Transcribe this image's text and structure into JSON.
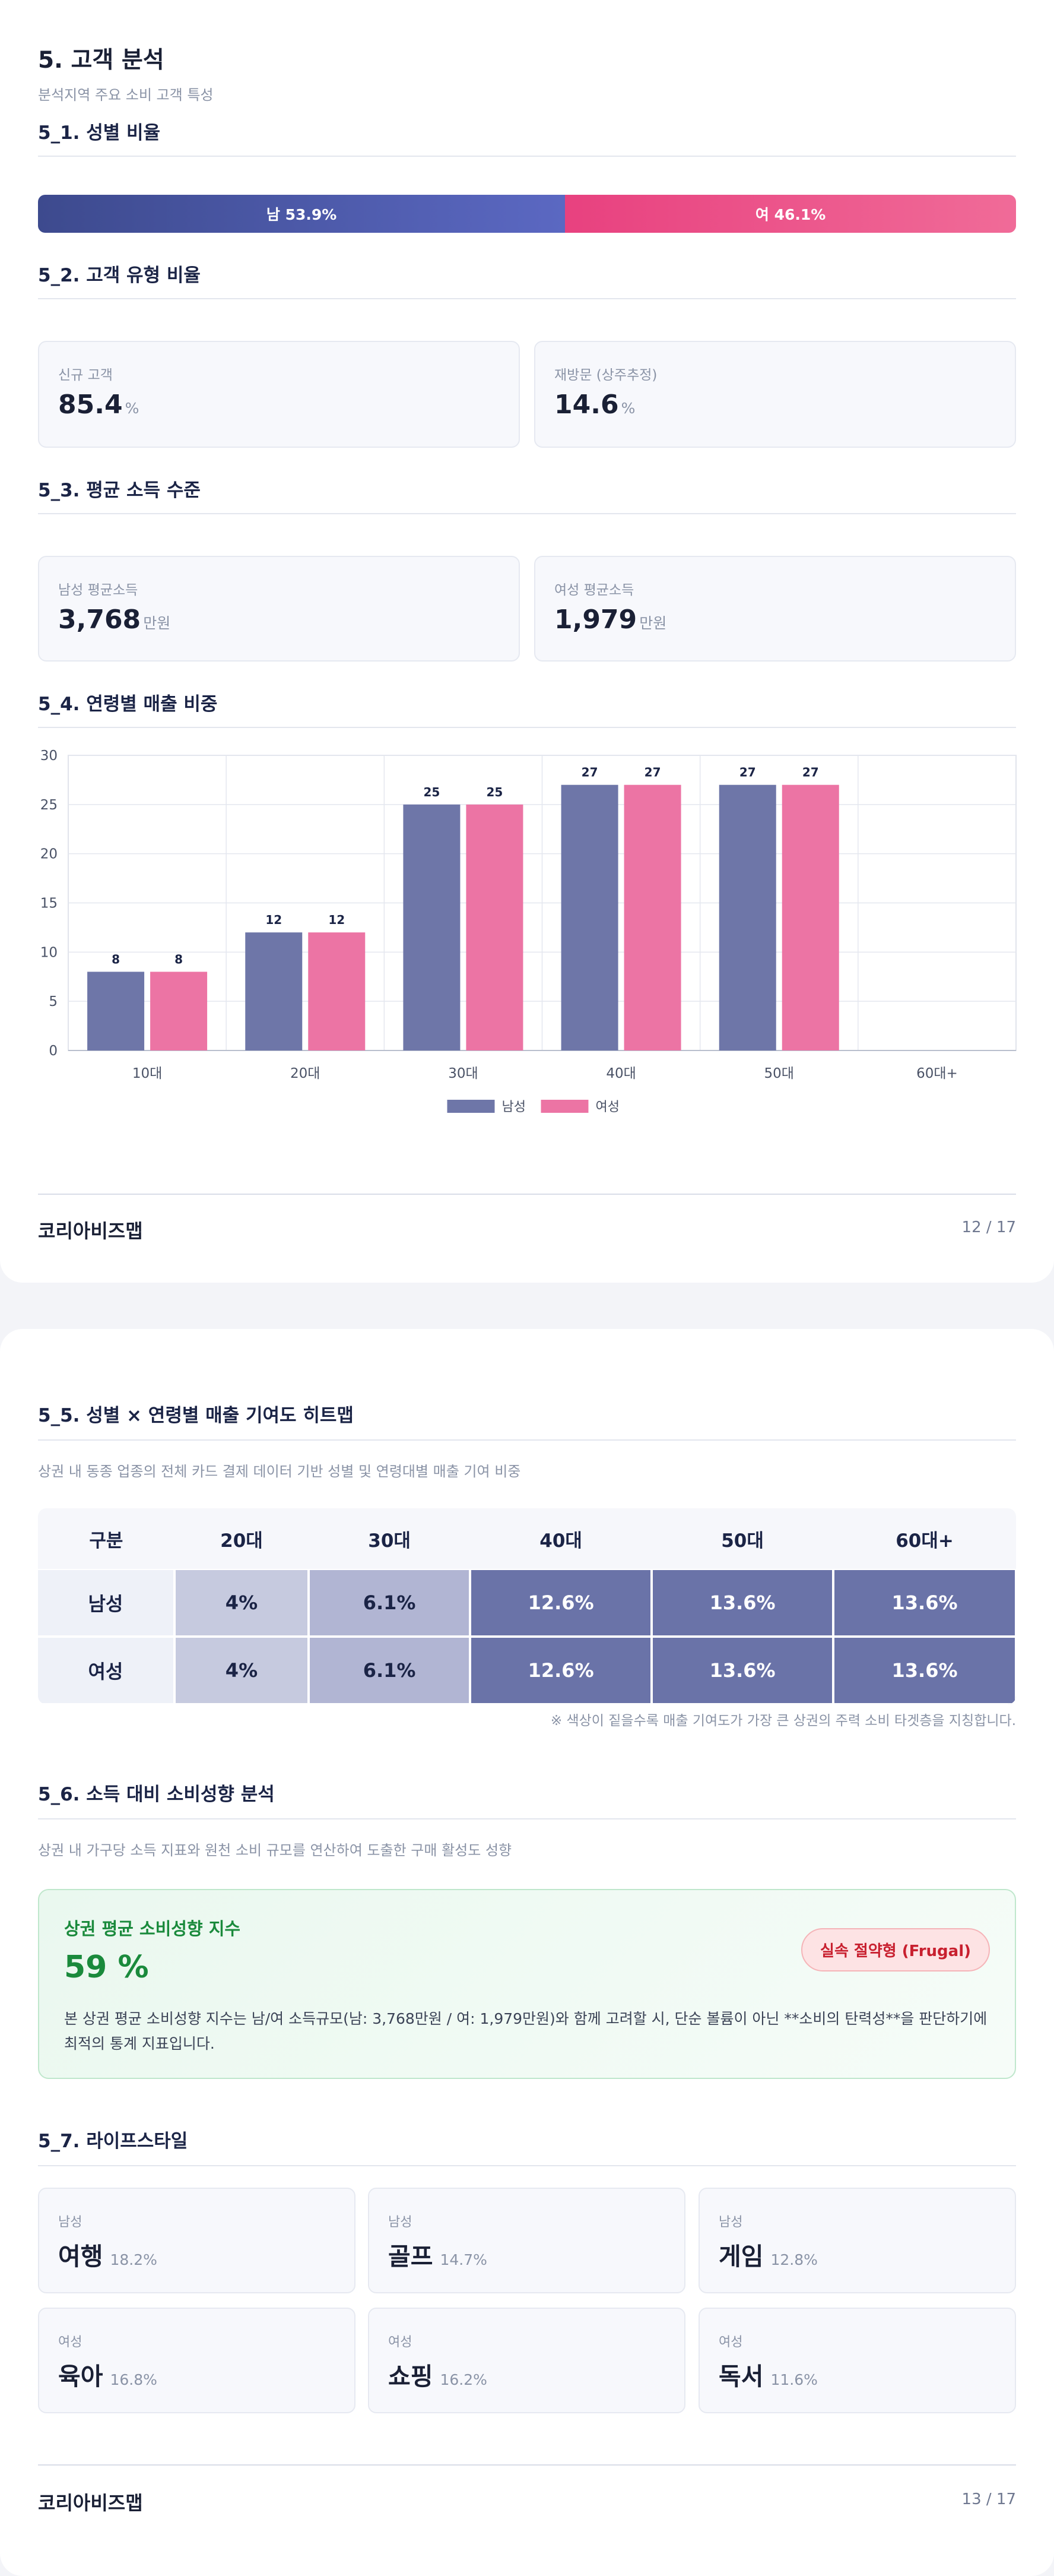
{
  "page1": {
    "title": "5. 고객 분석",
    "subtitle": "분석지역 주요 소비 고객 특성",
    "s51": {
      "title": "5_1. 성별 비율",
      "male_label": "남 53.9%",
      "female_label": "여 46.1%",
      "male_pct": 53.9,
      "female_pct": 46.1
    },
    "s52": {
      "title": "5_2. 고객 유형 비율",
      "cards": [
        {
          "label": "신규 고객",
          "value": "85.4",
          "unit": "%"
        },
        {
          "label": "재방문 (상주추정)",
          "value": "14.6",
          "unit": "%"
        }
      ]
    },
    "s53": {
      "title": "5_3. 평균 소득 수준",
      "cards": [
        {
          "label": "남성 평균소득",
          "value": "3,768",
          "unit": "만원"
        },
        {
          "label": "여성 평균소득",
          "value": "1,979",
          "unit": "만원"
        }
      ]
    },
    "s54": {
      "title": "5_4. 연령별 매출 비중"
    },
    "footer": {
      "brand": "코리아비즈맵",
      "page": "12 / 17"
    }
  },
  "chart_data": {
    "type": "bar",
    "title": "",
    "xlabel": "",
    "ylabel": "",
    "categories": [
      "10대",
      "20대",
      "30대",
      "40대",
      "50대",
      "60대+"
    ],
    "series": [
      {
        "name": "남성",
        "values": [
          8,
          12,
          25,
          27,
          27,
          null
        ],
        "color": "#6e76a8"
      },
      {
        "name": "여성",
        "values": [
          8,
          12,
          25,
          27,
          27,
          null
        ],
        "color": "#ec74a4"
      }
    ],
    "ylim": [
      0,
      30
    ],
    "yticks": [
      0,
      5,
      10,
      15,
      20,
      25,
      30
    ],
    "grid": true,
    "legend_position": "bottom-center"
  },
  "page2": {
    "s55": {
      "title": "5_5. 성별 × 연령별 매출 기여도 히트맵",
      "subtitle": "상권 내 동종 업종의 전체 카드 결제 데이터 기반 성별 및 연령대별 매출 기여 비중",
      "headers": [
        "구분",
        "20대",
        "30대",
        "40대",
        "50대",
        "60대+"
      ],
      "rows": [
        {
          "label": "남성",
          "cells": [
            "4%",
            "6.1%",
            "12.6%",
            "13.6%",
            "13.6%"
          ]
        },
        {
          "label": "여성",
          "cells": [
            "4%",
            "6.1%",
            "12.6%",
            "13.6%",
            "13.6%"
          ]
        }
      ],
      "cell_colors": [
        "#c6cadf",
        "#b1b5d3",
        "#6a73a8",
        "#6a73a8",
        "#6a73a8"
      ],
      "cell_text_colors": [
        "#1b2446",
        "#1b2446",
        "#ffffff",
        "#ffffff",
        "#ffffff"
      ],
      "note": "※ 색상이 짙을수록 매출 기여도가 가장 큰 상권의 주력 소비 타겟층을 지칭합니다."
    },
    "s56": {
      "title": "5_6. 소득 대비 소비성향 분석",
      "subtitle": "상권 내 가구당 소득 지표와 원천 소비 규모를 연산하여 도출한 구매 활성도 성향",
      "index_label": "상권 평균 소비성향 지수",
      "index_value": "59 %",
      "badge": "실속 절약형 (Frugal)",
      "description": "본 상권 평균 소비성향 지수는 남/여 소득규모(남: 3,768만원 / 여: 1,979만원)와 함께 고려할 시, 단순 볼륨이 아닌 **소비의 탄력성**을 판단하기에 최적의 통계 지표입니다."
    },
    "s57": {
      "title": "5_7. 라이프스타일",
      "items": [
        {
          "gender": "남성",
          "name": "여행",
          "pct": "18.2%"
        },
        {
          "gender": "남성",
          "name": "골프",
          "pct": "14.7%"
        },
        {
          "gender": "남성",
          "name": "게임",
          "pct": "12.8%"
        },
        {
          "gender": "여성",
          "name": "육아",
          "pct": "16.8%"
        },
        {
          "gender": "여성",
          "name": "쇼핑",
          "pct": "16.2%"
        },
        {
          "gender": "여성",
          "name": "독서",
          "pct": "11.6%"
        }
      ]
    },
    "footer": {
      "brand": "코리아비즈맵",
      "page": "13 / 17"
    }
  }
}
